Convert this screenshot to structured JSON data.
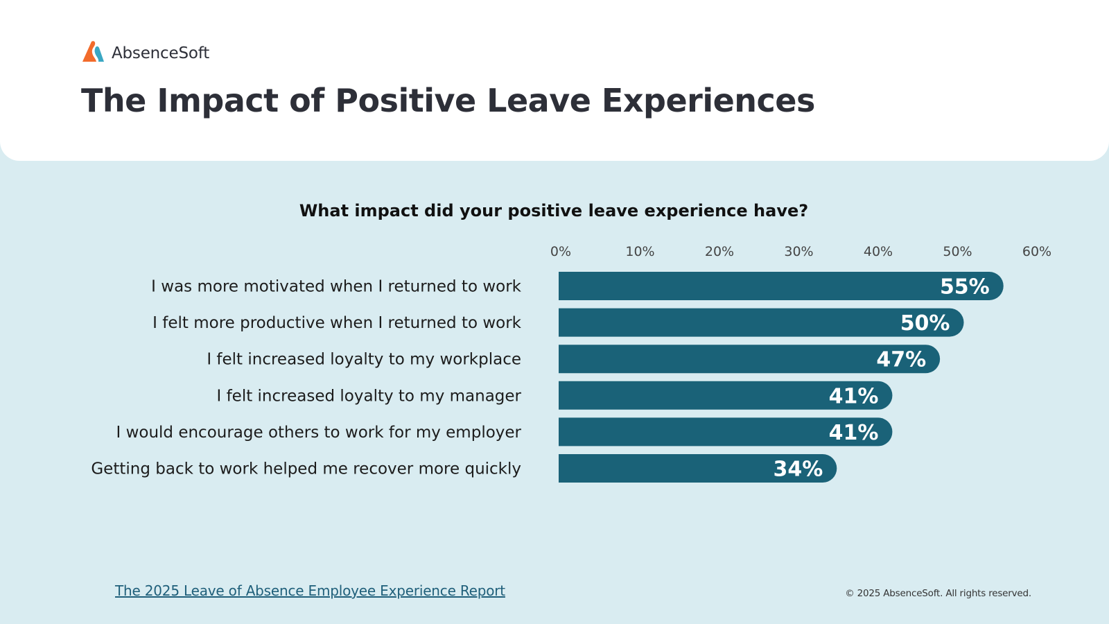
{
  "brand": {
    "name": "AbsenceSoft",
    "logo_icon": "absencesoft-logo-icon",
    "colors": {
      "orange": "#f26b2b",
      "blue": "#3aa7c3"
    }
  },
  "header": {
    "title": "The Impact of Positive Leave Experiences"
  },
  "colors": {
    "background": "#d9ecf1",
    "bar": "#1a6278",
    "title_text": "#2d2f38",
    "link": "#1f5f7a"
  },
  "chart_data": {
    "type": "bar",
    "orientation": "horizontal",
    "title": "What impact did your positive leave experience have?",
    "xlabel": "",
    "ylabel": "",
    "xlim": [
      0,
      60
    ],
    "x_ticks": [
      0,
      10,
      20,
      30,
      40,
      50,
      60
    ],
    "x_tick_labels": [
      "0%",
      "10%",
      "20%",
      "30%",
      "40%",
      "50%",
      "60%"
    ],
    "x_axis_position": "top",
    "grid": false,
    "legend": "none",
    "categories": [
      "I was more motivated when I returned to work",
      "I felt more productive when I returned to work",
      "I felt increased loyalty to my workplace",
      "I felt increased loyalty to my manager",
      "I would encourage others to work for my employer",
      "Getting back to work helped me recover more quickly"
    ],
    "values": [
      55,
      50,
      47,
      41,
      41,
      34
    ],
    "data_labels": [
      "55%",
      "50%",
      "47%",
      "41%",
      "41%",
      "34%"
    ]
  },
  "footer": {
    "source_link": "The 2025 Leave of Absence Employee Experience Report",
    "copyright": "© 2025 AbsenceSoft. All rights reserved."
  }
}
